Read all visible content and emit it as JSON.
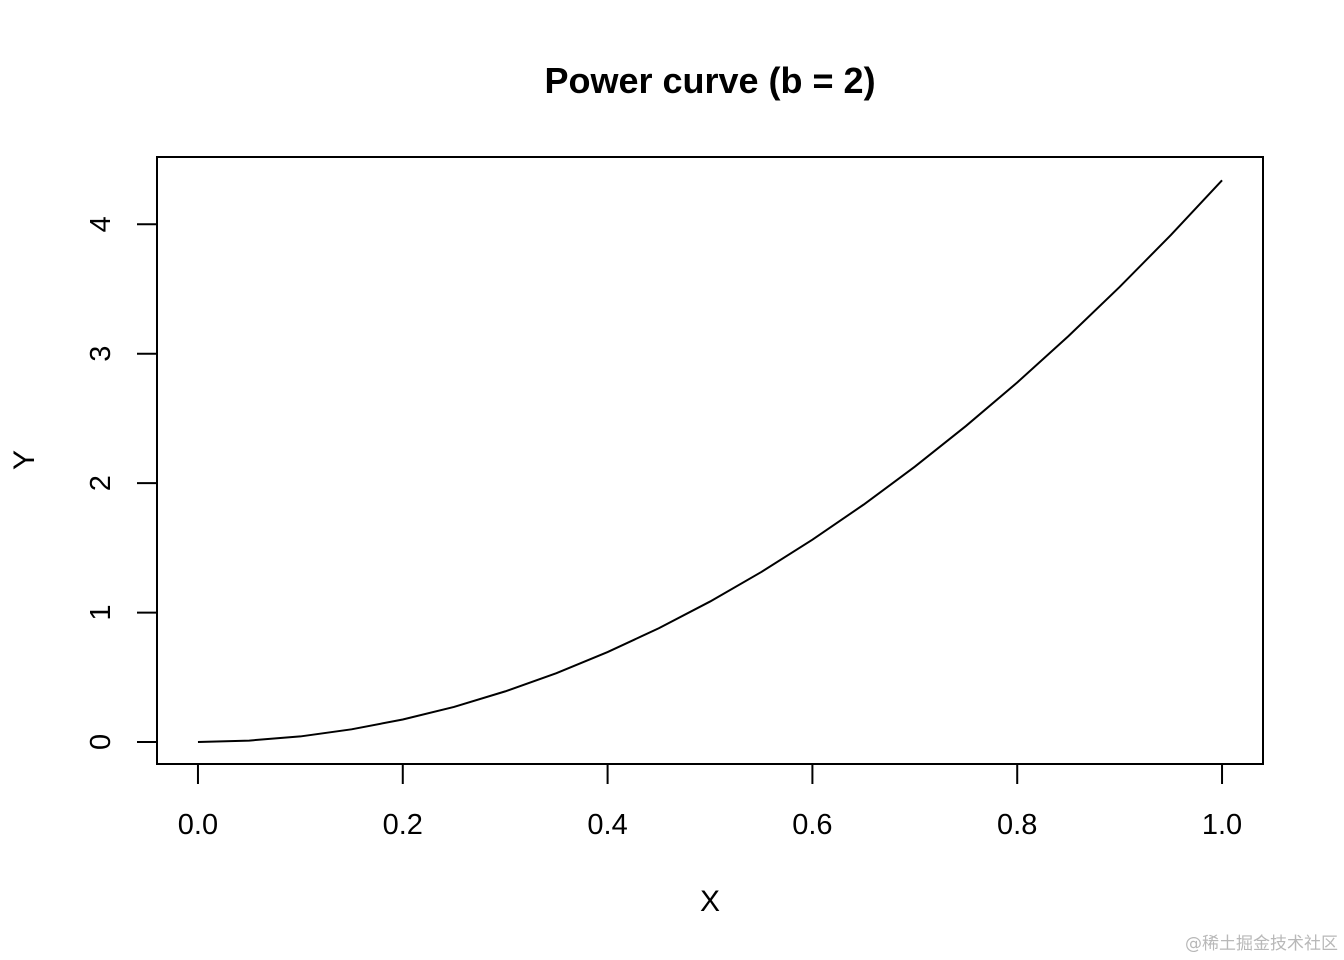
{
  "chart_data": {
    "type": "line",
    "title": "Power curve (b = 2)",
    "xlabel": "X",
    "ylabel": "Y",
    "xlim": [
      -0.04,
      1.04
    ],
    "ylim": [
      -0.17,
      4.52
    ],
    "x_ticks": [
      0.0,
      0.2,
      0.4,
      0.6,
      0.8,
      1.0
    ],
    "x_tick_labels": [
      "0.0",
      "0.2",
      "0.4",
      "0.6",
      "0.8",
      "1.0"
    ],
    "y_ticks": [
      0,
      1,
      2,
      3,
      4
    ],
    "y_tick_labels": [
      "0",
      "1",
      "2",
      "3",
      "4"
    ],
    "grid": false,
    "color": "#000000",
    "series": [
      {
        "x": [
          0.0,
          0.05,
          0.1,
          0.15,
          0.2,
          0.25,
          0.3,
          0.35,
          0.4,
          0.45,
          0.5,
          0.55,
          0.6,
          0.65,
          0.7,
          0.75,
          0.8,
          0.85,
          0.9,
          0.95,
          1.0
        ],
        "y": [
          0.0,
          0.011,
          0.043,
          0.098,
          0.174,
          0.271,
          0.391,
          0.532,
          0.695,
          0.879,
          1.085,
          1.313,
          1.563,
          1.834,
          2.127,
          2.442,
          2.778,
          3.136,
          3.516,
          3.917,
          4.34
        ]
      }
    ]
  },
  "watermark": "@稀土掘金技术社区"
}
